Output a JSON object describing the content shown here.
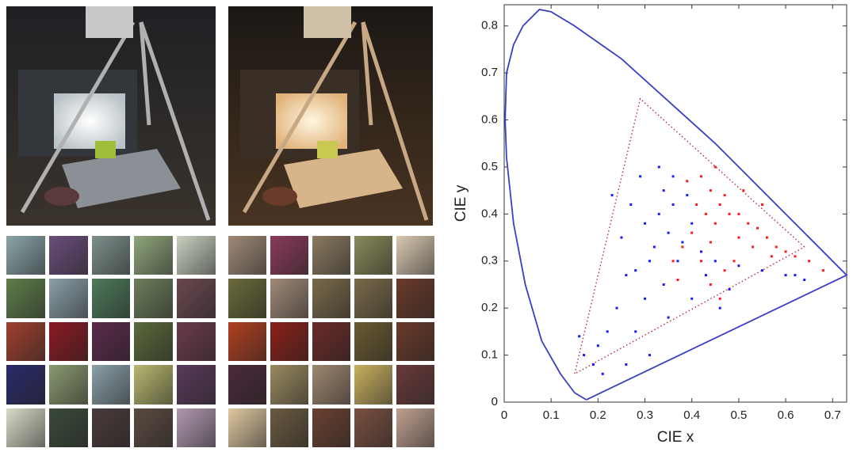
{
  "chart_data": {
    "type": "scatter",
    "x_label": "CIE x",
    "y_label": "CIE y",
    "xlim": [
      0,
      0.73
    ],
    "ylim": [
      0,
      0.845
    ],
    "xticks": [
      0,
      0.1,
      0.2,
      0.3,
      0.4,
      0.5,
      0.6,
      0.7
    ],
    "yticks": [
      0,
      0.1,
      0.2,
      0.3,
      0.4,
      0.5,
      0.6,
      0.7,
      0.8
    ],
    "series": [
      {
        "style": "line",
        "color": "#3a3fc4",
        "x": [
          0.175,
          0.15,
          0.12,
          0.08,
          0.045,
          0.02,
          0.005,
          0.002,
          0.005,
          0.02,
          0.04,
          0.075,
          0.1,
          0.15,
          0.25,
          0.35,
          0.45,
          0.55,
          0.65,
          0.73,
          0.175
        ],
        "values": [
          0.005,
          0.02,
          0.06,
          0.13,
          0.25,
          0.38,
          0.52,
          0.6,
          0.7,
          0.76,
          0.8,
          0.835,
          0.83,
          0.8,
          0.73,
          0.64,
          0.55,
          0.45,
          0.35,
          0.27,
          0.005
        ]
      },
      {
        "style": "dotted",
        "color": "#b02a3a",
        "x": [
          0.64,
          0.29,
          0.15,
          0.64
        ],
        "values": [
          0.33,
          0.645,
          0.06,
          0.33
        ]
      },
      {
        "style": "points",
        "color": "#1a1aff",
        "x": [
          0.3,
          0.33,
          0.35,
          0.32,
          0.36,
          0.34,
          0.31,
          0.28,
          0.38,
          0.4,
          0.37,
          0.42,
          0.45,
          0.5,
          0.55,
          0.6,
          0.64,
          0.62,
          0.26,
          0.24,
          0.22,
          0.2,
          0.17,
          0.16,
          0.19,
          0.21,
          0.25,
          0.23,
          0.27,
          0.29,
          0.33,
          0.36,
          0.39,
          0.3,
          0.34,
          0.4,
          0.46,
          0.28,
          0.35,
          0.43,
          0.48,
          0.31,
          0.26
        ],
        "values": [
          0.38,
          0.4,
          0.36,
          0.33,
          0.42,
          0.45,
          0.3,
          0.28,
          0.34,
          0.38,
          0.3,
          0.32,
          0.3,
          0.29,
          0.28,
          0.27,
          0.26,
          0.27,
          0.27,
          0.2,
          0.15,
          0.12,
          0.1,
          0.14,
          0.08,
          0.06,
          0.35,
          0.44,
          0.42,
          0.48,
          0.5,
          0.48,
          0.44,
          0.22,
          0.25,
          0.22,
          0.2,
          0.15,
          0.18,
          0.27,
          0.24,
          0.1,
          0.08
        ]
      },
      {
        "style": "points",
        "color": "#ff1a1a",
        "x": [
          0.42,
          0.44,
          0.46,
          0.48,
          0.5,
          0.52,
          0.54,
          0.56,
          0.58,
          0.6,
          0.62,
          0.65,
          0.68,
          0.43,
          0.45,
          0.47,
          0.41,
          0.4,
          0.38,
          0.36,
          0.44,
          0.5,
          0.53,
          0.57,
          0.49,
          0.47,
          0.46,
          0.44,
          0.55,
          0.51,
          0.45,
          0.39,
          0.42,
          0.37
        ],
        "values": [
          0.48,
          0.45,
          0.42,
          0.4,
          0.4,
          0.38,
          0.37,
          0.35,
          0.33,
          0.32,
          0.31,
          0.3,
          0.28,
          0.4,
          0.38,
          0.44,
          0.42,
          0.36,
          0.33,
          0.3,
          0.34,
          0.35,
          0.33,
          0.31,
          0.3,
          0.28,
          0.22,
          0.25,
          0.42,
          0.45,
          0.5,
          0.47,
          0.3,
          0.26
        ]
      }
    ]
  }
}
